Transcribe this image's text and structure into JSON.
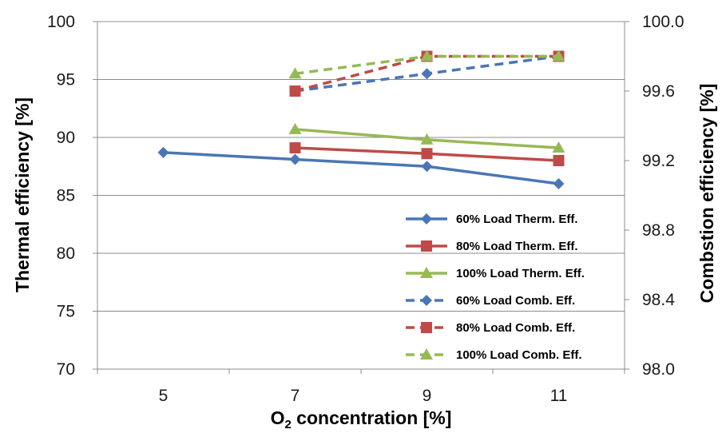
{
  "chart_data": {
    "type": "line",
    "x_categories": [
      5,
      7,
      9,
      11
    ],
    "y_left": {
      "label": "Thermal efficiency [%]",
      "ylim": [
        70,
        100
      ],
      "ticks": [
        "70",
        "75",
        "80",
        "85",
        "90",
        "95",
        "100"
      ]
    },
    "y_right": {
      "label": "Combstion efficiency [%]",
      "ylim": [
        98.0,
        100.0
      ],
      "ticks": [
        "98.0",
        "98.4",
        "98.8",
        "99.2",
        "99.6",
        "100.0"
      ]
    },
    "x_axis": {
      "label_prefix": "O",
      "label_sub": "2",
      "label_suffix": " concentration [%]",
      "tick_labels": [
        "5",
        "7",
        "9",
        "11"
      ]
    },
    "grid": "horizontal",
    "legend_position": "bottom-right",
    "series": [
      {
        "name": "60% Load Therm. Eff.",
        "axis": "left",
        "color": "#4a76b5",
        "marker": "diamond",
        "dashed": false,
        "x": [
          5,
          7,
          9,
          11
        ],
        "y": [
          88.7,
          88.1,
          87.5,
          86.0
        ]
      },
      {
        "name": "80% Load Therm. Eff.",
        "axis": "left",
        "color": "#be4b48",
        "marker": "square",
        "dashed": false,
        "x": [
          7,
          9,
          11
        ],
        "y": [
          89.1,
          88.6,
          88.0
        ]
      },
      {
        "name": "100% Load Therm. Eff.",
        "axis": "left",
        "color": "#97b954",
        "marker": "triangle",
        "dashed": false,
        "x": [
          7,
          9,
          11
        ],
        "y": [
          90.7,
          89.8,
          89.1
        ]
      },
      {
        "name": "60% Load Comb. Eff.",
        "axis": "right",
        "color": "#4a76b5",
        "marker": "diamond",
        "dashed": true,
        "x": [
          7,
          9,
          11
        ],
        "y": [
          99.6,
          99.7,
          99.8
        ]
      },
      {
        "name": "80% Load Comb. Eff.",
        "axis": "right",
        "color": "#be4b48",
        "marker": "square",
        "dashed": true,
        "x": [
          7,
          9,
          11
        ],
        "y": [
          99.6,
          99.8,
          99.8
        ]
      },
      {
        "name": "100% Load Comb. Eff.",
        "axis": "right",
        "color": "#97b954",
        "marker": "triangle",
        "dashed": true,
        "x": [
          7,
          9,
          11
        ],
        "y": [
          99.7,
          99.8,
          99.8
        ]
      }
    ]
  }
}
